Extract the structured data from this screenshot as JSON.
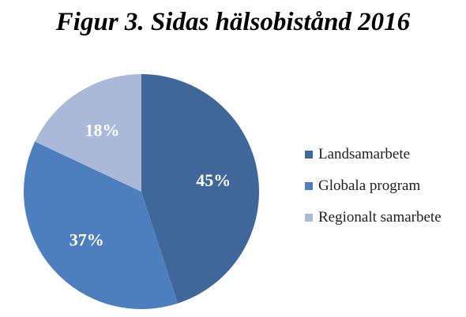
{
  "chart_data": {
    "type": "pie",
    "title": "Figur 3. Sidas hälsobistånd 2016",
    "categories": [
      "Landsamarbete",
      "Globala program",
      "Regionalt samarbete"
    ],
    "values": [
      45,
      37,
      18
    ],
    "labels": [
      "45%",
      "37%",
      "18%"
    ],
    "colors": [
      "#3f6799",
      "#4d7fbf",
      "#aab9d7"
    ],
    "legend_position": "right",
    "start_angle": "12 o'clock",
    "direction": "clockwise"
  }
}
